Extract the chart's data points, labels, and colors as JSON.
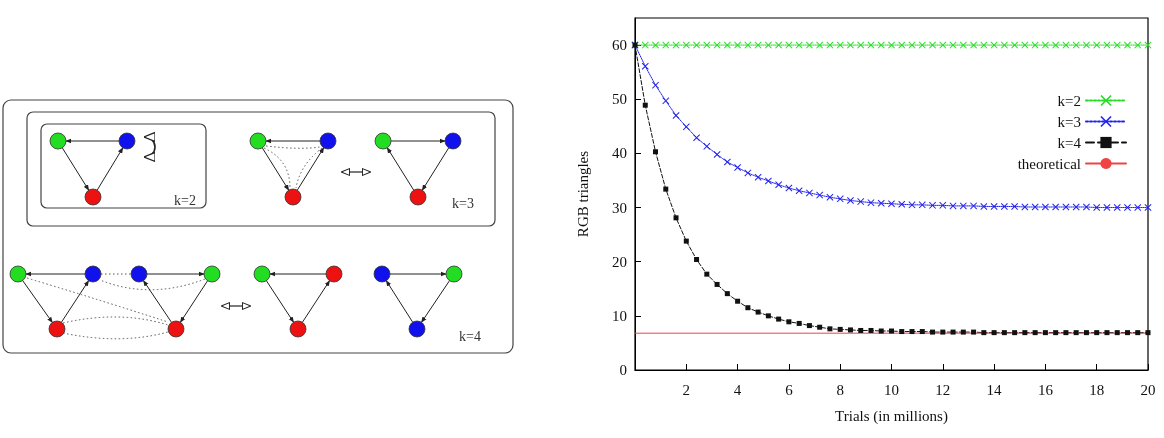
{
  "chart_data": [
    {
      "type": "other",
      "annotations": [
        "k=2",
        "k=3",
        "k=4"
      ]
    },
    {
      "type": "line",
      "xlabel": "Trials (in millions)",
      "ylabel": "RGB triangles",
      "x": [
        0,
        0.4,
        0.8,
        1.2,
        1.6,
        2,
        2.4,
        2.8,
        3.2,
        3.6,
        4,
        4.4,
        4.8,
        5.2,
        5.6,
        6,
        6.4,
        6.8,
        7.2,
        7.6,
        8,
        8.4,
        8.8,
        9.2,
        9.6,
        10,
        10.4,
        10.8,
        11.2,
        11.6,
        12,
        12.4,
        12.8,
        13.2,
        13.6,
        14,
        14.4,
        14.8,
        15.2,
        15.6,
        16,
        16.4,
        16.8,
        17.2,
        17.6,
        18,
        18.4,
        18.8,
        19.2,
        19.6,
        20
      ],
      "series": [
        {
          "name": "k=2",
          "color": "#22dd22",
          "marker": "cross",
          "line_style": "dotted",
          "values": [
            60,
            60,
            60,
            60,
            60,
            60,
            60,
            60,
            60,
            60,
            60,
            60,
            60,
            60,
            60,
            60,
            60,
            60,
            60,
            60,
            60,
            60,
            60,
            60,
            60,
            60,
            60,
            60,
            60,
            60,
            60,
            60,
            60,
            60,
            60,
            60,
            60,
            60,
            60,
            60,
            60,
            60,
            60,
            60,
            60,
            60,
            60,
            60,
            60,
            60,
            60
          ]
        },
        {
          "name": "k=3",
          "color": "#2222ee",
          "marker": "cross",
          "line_style": "dotted",
          "values": [
            60,
            56.1,
            52.6,
            49.7,
            47.0,
            44.9,
            42.9,
            41.3,
            39.8,
            38.4,
            37.4,
            36.4,
            35.6,
            34.9,
            34.2,
            33.6,
            33.1,
            32.7,
            32.3,
            31.9,
            31.6,
            31.3,
            31.1,
            30.9,
            30.8,
            30.7,
            30.6,
            30.5,
            30.5,
            30.4,
            30.4,
            30.3,
            30.3,
            30.3,
            30.2,
            30.2,
            30.2,
            30.2,
            30.1,
            30.1,
            30.1,
            30.1,
            30.1,
            30.1,
            30.1,
            30.0,
            30.0,
            30.0,
            30.0,
            30.0,
            30.0
          ]
        },
        {
          "name": "k=4",
          "color": "#111111",
          "marker": "square",
          "line_style": "dashed",
          "values": [
            60,
            48.9,
            40.3,
            33.4,
            28.1,
            23.8,
            20.4,
            17.7,
            15.8,
            14.1,
            12.7,
            11.5,
            10.7,
            10.0,
            9.4,
            8.9,
            8.6,
            8.2,
            7.9,
            7.6,
            7.5,
            7.4,
            7.3,
            7.3,
            7.2,
            7.2,
            7.1,
            7.1,
            7.1,
            7.0,
            7.0,
            7.0,
            7.0,
            7.0,
            6.9,
            6.9,
            6.9,
            6.9,
            6.9,
            6.9,
            6.9,
            6.9,
            6.9,
            6.9,
            6.9,
            6.9,
            6.9,
            6.9,
            6.9,
            6.9,
            6.9
          ]
        },
        {
          "name": "theoretical",
          "color": "#ee4444",
          "marker": "none",
          "line_style": "solid",
          "x": [
            0,
            20
          ],
          "values": [
            6.8,
            6.8
          ]
        }
      ],
      "xlim": [
        0,
        20
      ],
      "xticks": [
        2,
        4,
        6,
        8,
        10,
        12,
        14,
        16,
        18,
        20
      ],
      "ylim": [
        0,
        65
      ],
      "yticks": [
        0,
        10,
        20,
        30,
        40,
        50,
        60
      ],
      "grid": false,
      "legend": "top right"
    }
  ]
}
